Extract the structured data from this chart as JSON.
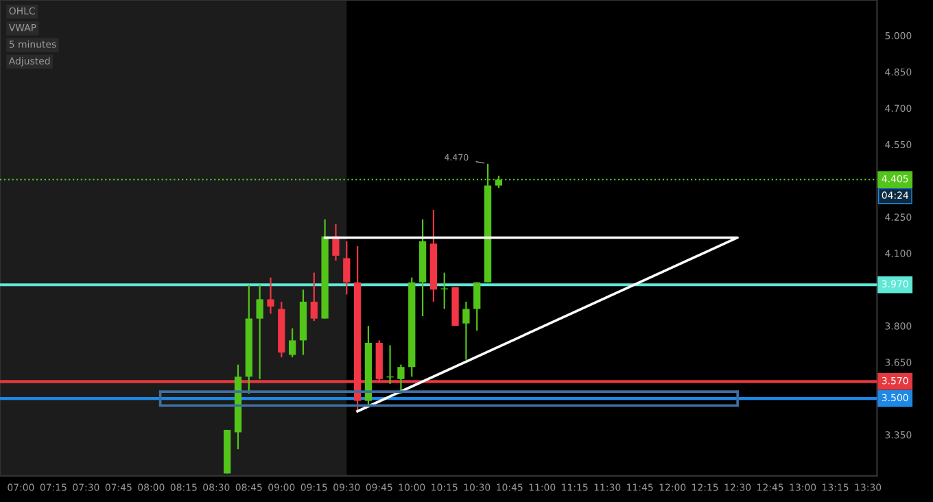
{
  "chart_data": {
    "type": "candlestick",
    "annotations": [
      "OHLC",
      "VWAP",
      "5 minutes",
      "Adjusted",
      {
        "text": "4.470",
        "x": 10.5833,
        "y": 4.47
      },
      {
        "text": "04:24",
        "y": 4.405
      }
    ],
    "x": [
      8.5833,
      8.6667,
      8.75,
      8.8333,
      8.9167,
      9.0,
      9.0833,
      9.1667,
      9.25,
      9.3333,
      9.4167,
      9.5,
      9.5833,
      9.6667,
      9.75,
      9.8333,
      9.9167,
      10.0,
      10.0833,
      10.1667,
      10.25,
      10.3333,
      10.4167,
      10.5,
      10.5833,
      10.6667
    ],
    "ohlc": [
      [
        3.19,
        3.37,
        3.19,
        3.37
      ],
      [
        3.36,
        3.64,
        3.29,
        3.59
      ],
      [
        3.59,
        3.97,
        3.52,
        3.83
      ],
      [
        3.83,
        3.97,
        3.58,
        3.91
      ],
      [
        3.91,
        4.0,
        3.85,
        3.88
      ],
      [
        3.87,
        3.9,
        3.67,
        3.69
      ],
      [
        3.68,
        3.79,
        3.67,
        3.74
      ],
      [
        3.74,
        3.95,
        3.68,
        3.9
      ],
      [
        3.9,
        4.02,
        3.82,
        3.83
      ],
      [
        3.83,
        4.24,
        3.83,
        4.17
      ],
      [
        4.17,
        4.22,
        4.07,
        4.09
      ],
      [
        4.08,
        4.15,
        3.93,
        3.98
      ],
      [
        3.98,
        4.13,
        3.45,
        3.49
      ],
      [
        3.49,
        3.8,
        3.47,
        3.73
      ],
      [
        3.73,
        3.74,
        3.57,
        3.58
      ],
      [
        3.587,
        3.72,
        3.56,
        3.591
      ],
      [
        3.58,
        3.64,
        3.52,
        3.63
      ],
      [
        3.63,
        4.0,
        3.59,
        3.98
      ],
      [
        3.98,
        4.24,
        3.84,
        4.15
      ],
      [
        4.14,
        4.28,
        3.9,
        3.95
      ],
      [
        3.951,
        4.02,
        3.87,
        3.955
      ],
      [
        3.96,
        3.96,
        3.8,
        3.8
      ],
      [
        3.81,
        3.9,
        3.66,
        3.87
      ],
      [
        3.87,
        3.98,
        3.78,
        3.98
      ],
      [
        3.98,
        4.47,
        3.98,
        4.38
      ],
      [
        4.38,
        4.42,
        4.37,
        4.405
      ]
    ],
    "colors": [
      "#53c41a",
      "#53c41a",
      "#53c41a",
      "#53c41a",
      "#f23645",
      "#f23645",
      "#53c41a",
      "#53c41a",
      "#f23645",
      "#53c41a",
      "#f23645",
      "#f23645",
      "#f23645",
      "#53c41a",
      "#f23645",
      "#53c41a",
      "#53c41a",
      "#53c41a",
      "#53c41a",
      "#f23645",
      "#53c41a",
      "#f23645",
      "#53c41a",
      "#53c41a",
      "#53c41a",
      "#53c41a"
    ],
    "series": [
      {
        "type": "line",
        "color": "#ffffff",
        "x": [
          9.3333,
          12.5,
          9.5833
        ],
        "values": [
          4.165,
          4.165,
          3.447
        ]
      },
      {
        "type": "line",
        "color": "#3f6f9f",
        "x": [
          8.07,
          12.5
        ],
        "values": [
          3.528,
          3.528
        ]
      },
      {
        "type": "line",
        "color": "#3f6f9f",
        "x": [
          8.07,
          12.5
        ],
        "values": [
          3.471,
          3.471
        ]
      }
    ],
    "ref_lines": [
      {
        "axis": "y",
        "value": 4.405,
        "label": "4.405",
        "color": "#53c41a",
        "line_style": "dotted"
      },
      {
        "axis": "y",
        "value": 3.97,
        "label": "3.970",
        "color": "#5ee8d6"
      },
      {
        "axis": "y",
        "value": 3.57,
        "label": "3.570",
        "color": "#e5393f"
      },
      {
        "axis": "y",
        "value": 3.5,
        "label": "3.500",
        "color": "#1e88e5"
      }
    ],
    "bands": [
      {
        "axis": "x",
        "from": 6.84,
        "to": 9.5,
        "color": "#1c1c1c"
      }
    ],
    "xlim": [
      6.84,
      13.57
    ],
    "ylim": [
      3.18,
      5.147
    ],
    "xticks": [
      {
        "value": 7.0,
        "label": "07:00"
      },
      {
        "value": 7.25,
        "label": "07:15"
      },
      {
        "value": 7.5,
        "label": "07:30"
      },
      {
        "value": 7.75,
        "label": "07:45"
      },
      {
        "value": 8.0,
        "label": "08:00"
      },
      {
        "value": 8.25,
        "label": "08:15"
      },
      {
        "value": 8.5,
        "label": "08:30"
      },
      {
        "value": 8.75,
        "label": "08:45"
      },
      {
        "value": 9.0,
        "label": "09:00"
      },
      {
        "value": 9.25,
        "label": "09:15"
      },
      {
        "value": 9.5,
        "label": "09:30"
      },
      {
        "value": 9.75,
        "label": "09:45"
      },
      {
        "value": 10.0,
        "label": "10:00"
      },
      {
        "value": 10.25,
        "label": "10:15"
      },
      {
        "value": 10.5,
        "label": "10:30"
      },
      {
        "value": 10.75,
        "label": "10:45"
      },
      {
        "value": 11.0,
        "label": "11:00"
      },
      {
        "value": 11.25,
        "label": "11:15"
      },
      {
        "value": 11.5,
        "label": "11:30"
      },
      {
        "value": 11.75,
        "label": "11:45"
      },
      {
        "value": 12.0,
        "label": "12:00"
      },
      {
        "value": 12.25,
        "label": "12:15"
      },
      {
        "value": 12.5,
        "label": "12:30"
      },
      {
        "value": 12.75,
        "label": "12:45"
      },
      {
        "value": 13.0,
        "label": "13:00"
      },
      {
        "value": 13.25,
        "label": "13:15"
      },
      {
        "value": 13.5,
        "label": "13:30"
      }
    ],
    "yticks": [
      {
        "value": 3.35,
        "label": "3.350"
      },
      {
        "value": 3.65,
        "label": "3.650"
      },
      {
        "value": 3.8,
        "label": "3.800"
      },
      {
        "value": 4.1,
        "label": "4.100"
      },
      {
        "value": 4.25,
        "label": "4.250"
      },
      {
        "value": 4.55,
        "label": "4.550"
      },
      {
        "value": 4.7,
        "label": "4.700"
      },
      {
        "value": 4.85,
        "label": "4.850"
      },
      {
        "value": 5.0,
        "label": "5.000"
      }
    ]
  }
}
